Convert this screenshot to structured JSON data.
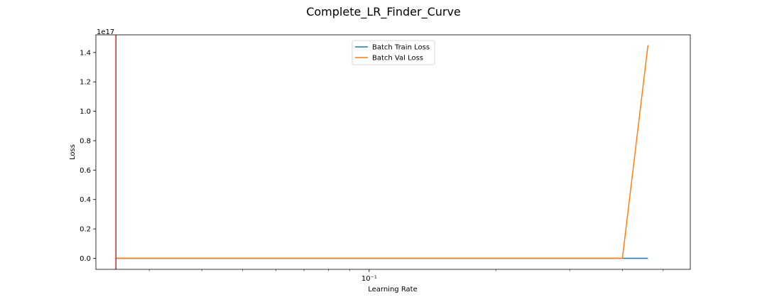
{
  "chart_data": {
    "type": "line",
    "title": "Complete_LR_Finder_Curve",
    "xlabel": "Learning Rate",
    "ylabel": "Loss",
    "x_scale": "log",
    "xlim": [
      0.0224,
      0.58
    ],
    "ylim": [
      -7500000000000000.0,
      1.52e+17
    ],
    "y_offset_label": "1e17",
    "y_ticks": [
      0.0,
      2e+16,
      4e+16,
      6e+16,
      8e+16,
      1e+17,
      1.2e+17,
      1.4e+17
    ],
    "y_tick_labels": [
      "0.0",
      "0.2",
      "0.4",
      "0.6",
      "0.8",
      "1.0",
      "1.2",
      "1.4"
    ],
    "x_major_ticks": [
      0.1
    ],
    "x_major_tick_labels": [
      "10⁻¹"
    ],
    "x_minor_ticks": [
      0.03,
      0.04,
      0.05,
      0.06,
      0.07,
      0.08,
      0.09,
      0.2,
      0.3,
      0.4,
      0.5
    ],
    "vertical_line": {
      "x": 0.025,
      "color": "#e41a1c"
    },
    "legend_position": "upper center",
    "series": [
      {
        "name": "Batch Train Loss",
        "color": "#1f77b4",
        "x": [
          0.025,
          0.4,
          0.46
        ],
        "y": [
          0,
          0,
          0
        ]
      },
      {
        "name": "Batch Val Loss",
        "color": "#ff7f0e",
        "x": [
          0.025,
          0.4,
          0.46
        ],
        "y": [
          0,
          0,
          1.45e+17
        ]
      }
    ]
  }
}
